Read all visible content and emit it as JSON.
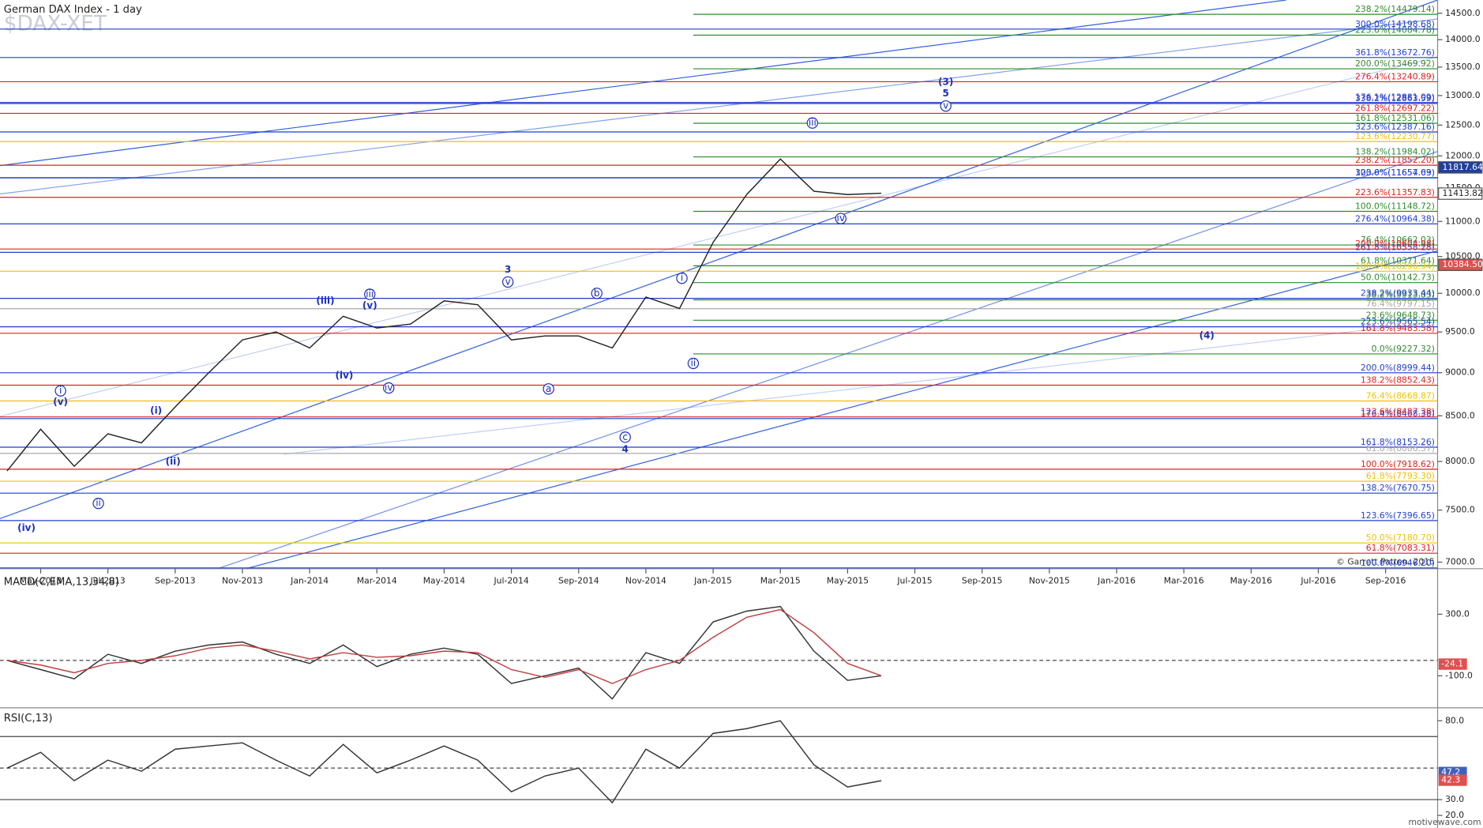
{
  "chart_data": [
    {
      "type": "line",
      "title": "German DAX Index - 1 day",
      "watermark": "$DAX-XET",
      "log_scale": true,
      "color": "#222222",
      "categories": [
        null,
        "May-2013",
        null,
        "Jul-2013",
        null,
        "Sep-2013",
        null,
        "Nov-2013",
        null,
        "Jan-2014",
        null,
        "Mar-2014",
        null,
        "May-2014",
        null,
        "Jul-2014",
        null,
        "Sep-2014",
        null,
        "Nov-2014",
        null,
        "Jan-2015",
        null,
        "Mar-2015",
        null,
        "May-2015",
        null,
        "Jul-2015",
        null,
        "Sep-2015",
        null,
        "Nov-2015",
        null,
        "Jan-2016",
        null,
        "Mar-2016",
        null,
        "May-2016",
        null,
        "Jul-2016",
        null,
        "Sep-2016"
      ],
      "values": [
        7900,
        8350,
        7950,
        8300,
        8200,
        8600,
        9000,
        9400,
        9500,
        9300,
        9700,
        9550,
        9600,
        9900,
        9850,
        9400,
        9450,
        9450,
        9300,
        9950,
        9800,
        10700,
        11400,
        11950,
        11450,
        11400,
        11420,
        null,
        null,
        null,
        null,
        null,
        null,
        null,
        null,
        null,
        null,
        null,
        null,
        null,
        null,
        null
      ],
      "ylim": [
        6939,
        14757
      ],
      "yticks": [
        {
          "value": 7000,
          "label": "7000.0"
        },
        {
          "value": 7500,
          "label": "7500.0"
        },
        {
          "value": 8000,
          "label": "8000.0"
        },
        {
          "value": 8500,
          "label": "8500.0"
        },
        {
          "value": 9000,
          "label": "9000.0"
        },
        {
          "value": 9500,
          "label": "9500.0"
        },
        {
          "value": 10000,
          "label": "10000.0"
        },
        {
          "value": 10500,
          "label": "10500.0"
        },
        {
          "value": 11000,
          "label": "11000.0"
        },
        {
          "value": 11500,
          "label": "11500.0"
        },
        {
          "value": 12000,
          "label": "12000.0"
        },
        {
          "value": 12500,
          "label": "12500.0"
        },
        {
          "value": 13000,
          "label": "13000.0"
        },
        {
          "value": 13500,
          "label": "13500.0"
        },
        {
          "value": 14000,
          "label": "14000.0"
        },
        {
          "value": 14500,
          "label": "14500.0"
        }
      ],
      "level_sets": [
        {
          "color": "#2e8b2e",
          "levels": [
            {
              "value": 14479.14,
              "label": "238.2%(14479.14)"
            },
            {
              "value": 14084.78,
              "label": "223.6%(14084.78)"
            },
            {
              "value": 13469.92,
              "label": "200.0%(13469.92)"
            },
            {
              "value": 12531.06,
              "label": "161.8%(12531.06)"
            },
            {
              "value": 11984.02,
              "label": "138.2%(11984.02)"
            },
            {
              "value": 11148.72,
              "label": "100.0%(11148.72)"
            },
            {
              "value": 10662.03,
              "label": "76.4%(10662.03)"
            },
            {
              "value": 10371.64,
              "label": "61.8%(10371.64)"
            },
            {
              "value": 10142.73,
              "label": "50.0%(10142.73)"
            },
            {
              "value": 9913.83,
              "label": "38.2%(9913.83)"
            },
            {
              "value": 9648.73,
              "label": "23.6%(9648.73)"
            },
            {
              "value": 9227.32,
              "label": "0.0%(9227.32)"
            }
          ]
        },
        {
          "color": "#1f3fcf",
          "levels": [
            {
              "value": 14198.68,
              "label": "300.0%(14198.68)"
            },
            {
              "value": 13672.76,
              "label": "361.8%(13672.76)"
            },
            {
              "value": 12881.09,
              "label": "176.1%(12881.09)"
            },
            {
              "value": 12863.59,
              "label": "338.2%(12863.59)"
            },
            {
              "value": 12387.16,
              "label": "323.6%(12387.16)"
            },
            {
              "value": 11657.63,
              "label": "123.6%(11657.63)"
            },
            {
              "value": 11654.09,
              "label": "300.0%(11654.09)"
            },
            {
              "value": 10964.38,
              "label": "276.4%(10964.38)"
            },
            {
              "value": 10558.28,
              "label": "261.8%(10558.28)"
            },
            {
              "value": 9933.44,
              "label": "238.2%(9933.44)"
            },
            {
              "value": 9565.54,
              "label": "223.6%(9565.54)"
            },
            {
              "value": 8999.44,
              "label": "200.0%(8999.44)"
            },
            {
              "value": 8468.38,
              "label": "176.4%(8468.38)"
            },
            {
              "value": 8153.26,
              "label": "161.8%(8153.26)"
            },
            {
              "value": 7670.75,
              "label": "138.2%(7670.75)"
            },
            {
              "value": 7396.65,
              "label": "123.6%(7396.65)"
            },
            {
              "value": 6946.2,
              "label": "100.0%(6946.20)"
            }
          ]
        },
        {
          "color": "#e02020",
          "levels": [
            {
              "value": 13240.89,
              "label": "276.4%(13240.89)"
            },
            {
              "value": 12697.22,
              "label": "261.8%(12697.22)"
            },
            {
              "value": 11852.2,
              "label": "238.2%(11852.20)"
            },
            {
              "value": 11357.83,
              "label": "223.6%(11357.83)"
            },
            {
              "value": 10604.98,
              "label": "200.0%(10604.98)"
            },
            {
              "value": 9483.58,
              "label": "161.8%(9483.58)"
            },
            {
              "value": 8852.43,
              "label": "138.2%(8852.43)"
            },
            {
              "value": 8487.38,
              "label": "123.6%(8487.38)"
            },
            {
              "value": 7918.62,
              "label": "100.0%(7918.62)"
            },
            {
              "value": 7083.31,
              "label": "61.8%(7083.31)"
            }
          ]
        },
        {
          "color": "#f0c000",
          "levels": [
            {
              "value": 12230.77,
              "label": "123.6%(12230.77)"
            },
            {
              "value": 10296.94,
              "label": "100.0%(10296.94)"
            },
            {
              "value": 8668.87,
              "label": "76.4%(8668.87)"
            },
            {
              "value": 7793.3,
              "label": "61.8%(7793.30)"
            },
            {
              "value": 7180.7,
              "label": "50.0%(7180.70)"
            }
          ]
        },
        {
          "color": "#a8a8a8",
          "levels": [
            {
              "value": 9797.15,
              "label": "76.4%(9797.15)"
            },
            {
              "value": 8086.37,
              "label": "61.8%(8086.37)"
            }
          ]
        }
      ],
      "price_tags": [
        11817.64,
        11413.82,
        {
          "value": 10384.5,
          "label": "10384.50"
        }
      ],
      "price_tag_colors": [
        "#1f3f9f",
        "#ffffff",
        "#e05050"
      ],
      "annotations": [
        {
          "text": "(3)",
          "circled": false
        },
        {
          "text": "5",
          "circled": false
        },
        {
          "text": "v",
          "circled": true
        },
        {
          "text": "iii",
          "circled": true
        },
        {
          "text": "iv",
          "circled": true
        },
        {
          "text": "(4)",
          "circled": false
        },
        {
          "text": "i",
          "circled": true
        },
        {
          "text": "ii",
          "circled": true
        },
        {
          "text": "3",
          "circled": false
        },
        {
          "text": "v",
          "circled": true
        },
        {
          "text": "b",
          "circled": true
        },
        {
          "text": "a",
          "circled": true
        },
        {
          "text": "c",
          "circled": true
        },
        {
          "text": "4",
          "circled": false
        },
        {
          "text": "(iii)",
          "circled": false
        },
        {
          "text": "iii",
          "circled": true
        },
        {
          "text": "(v)",
          "circled": false
        },
        {
          "text": "(iv)",
          "circled": false
        },
        {
          "text": "iv",
          "circled": true
        },
        {
          "text": "(i)",
          "circled": false
        },
        {
          "text": "(ii)",
          "circled": false
        },
        {
          "text": "i",
          "circled": true
        },
        {
          "text": "(v)",
          "circled": false
        },
        {
          "text": "ii",
          "circled": true
        },
        {
          "text": "(iv)",
          "circled": false
        }
      ],
      "copyright": "© Garrett Patten, 2015",
      "footer": "motivewave.com"
    },
    {
      "type": "line",
      "title": "MACD(C,EMA,13,34,8)",
      "series": [
        {
          "color": "#333333",
          "values": [
            0,
            -60,
            -120,
            40,
            -20,
            60,
            100,
            120,
            40,
            -20,
            100,
            -40,
            40,
            80,
            40,
            -150,
            -100,
            -50,
            -250,
            50,
            -20,
            250,
            320,
            350,
            60,
            -130,
            -100
          ]
        },
        {
          "color": "#c04040",
          "values": [
            0,
            -30,
            -80,
            -20,
            0,
            30,
            80,
            100,
            60,
            10,
            50,
            20,
            30,
            60,
            50,
            -60,
            -110,
            -60,
            -150,
            -60,
            0,
            150,
            280,
            330,
            180,
            -20,
            -100
          ]
        }
      ],
      "ylim": [
        -302,
        571
      ],
      "yticks": [
        {
          "value": 300,
          "label": "300.0"
        },
        {
          "value": -100,
          "label": "-100.0"
        }
      ],
      "reference_lines": [
        0
      ],
      "value_tag": {
        "value": -24.1,
        "color": "#e05050"
      }
    },
    {
      "type": "line",
      "title": "RSI(C,13)",
      "series": [
        {
          "color": "#333333",
          "values": [
            50,
            60,
            42,
            55,
            48,
            62,
            64,
            66,
            55,
            45,
            65,
            47,
            55,
            64,
            55,
            35,
            45,
            50,
            28,
            62,
            50,
            72,
            75,
            80,
            52,
            38,
            42
          ]
        }
      ],
      "ylim": [
        12,
        87
      ],
      "yticks": [
        {
          "value": 80,
          "label": "80.0"
        },
        {
          "value": 30,
          "label": "30.0"
        },
        {
          "value": 20,
          "label": "20.0"
        }
      ],
      "reference_lines": [
        70,
        50,
        30
      ],
      "value_tags": [
        {
          "value": 47.2,
          "color": "#4060c0"
        },
        {
          "value": 42.3,
          "color": "#e05050"
        }
      ]
    }
  ]
}
